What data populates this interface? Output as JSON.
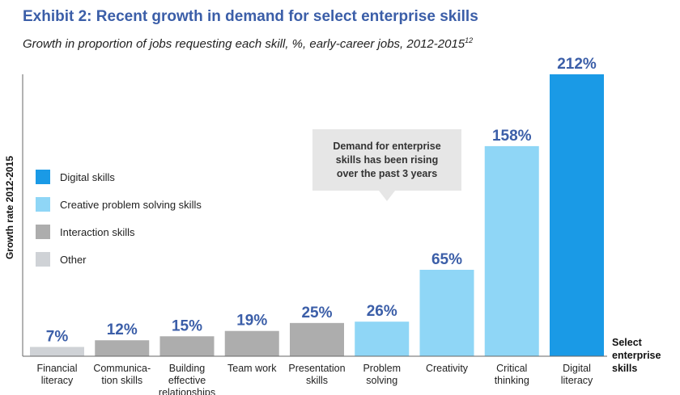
{
  "chart_data": {
    "type": "bar",
    "title": "Exhibit 2: Recent growth in demand for select enterprise skills",
    "subtitle": "Growth in proportion of jobs requesting each skill, %, early-career jobs, 2012-2015",
    "subtitle_sup": "12",
    "ylabel": "Growth rate 2012-2015",
    "xlabel_lines": [
      "Select",
      "enterprise",
      "skills"
    ],
    "ylim": [
      0,
      212
    ],
    "categories": [
      {
        "lines": [
          "Financial",
          "literacy"
        ],
        "value": 7,
        "label": "7%",
        "group": "other"
      },
      {
        "lines": [
          "Communica-",
          "tion skills"
        ],
        "value": 12,
        "label": "12%",
        "group": "interaction"
      },
      {
        "lines": [
          "Building",
          "effective",
          "relationships"
        ],
        "value": 15,
        "label": "15%",
        "group": "interaction"
      },
      {
        "lines": [
          "Team work"
        ],
        "value": 19,
        "label": "19%",
        "group": "interaction"
      },
      {
        "lines": [
          "Presentation",
          "skills"
        ],
        "value": 25,
        "label": "25%",
        "group": "interaction"
      },
      {
        "lines": [
          "Problem",
          "solving"
        ],
        "value": 26,
        "label": "26%",
        "group": "creative"
      },
      {
        "lines": [
          "Creativity"
        ],
        "value": 65,
        "label": "65%",
        "group": "creative"
      },
      {
        "lines": [
          "Critical",
          "thinking"
        ],
        "value": 158,
        "label": "158%",
        "group": "creative"
      },
      {
        "lines": [
          "Digital",
          "literacy"
        ],
        "value": 212,
        "label": "212%",
        "group": "digital"
      }
    ],
    "legend": [
      {
        "key": "digital",
        "label": "Digital skills",
        "color": "#1a9ae6"
      },
      {
        "key": "creative",
        "label": "Creative problem solving skills",
        "color": "#8fd6f6"
      },
      {
        "key": "interaction",
        "label": "Interaction skills",
        "color": "#adadad"
      },
      {
        "key": "other",
        "label": "Other",
        "color": "#cfd2d6"
      }
    ],
    "annotation": "Demand for enterprise skills has been rising over the past 3 years",
    "legend_position": "left"
  }
}
